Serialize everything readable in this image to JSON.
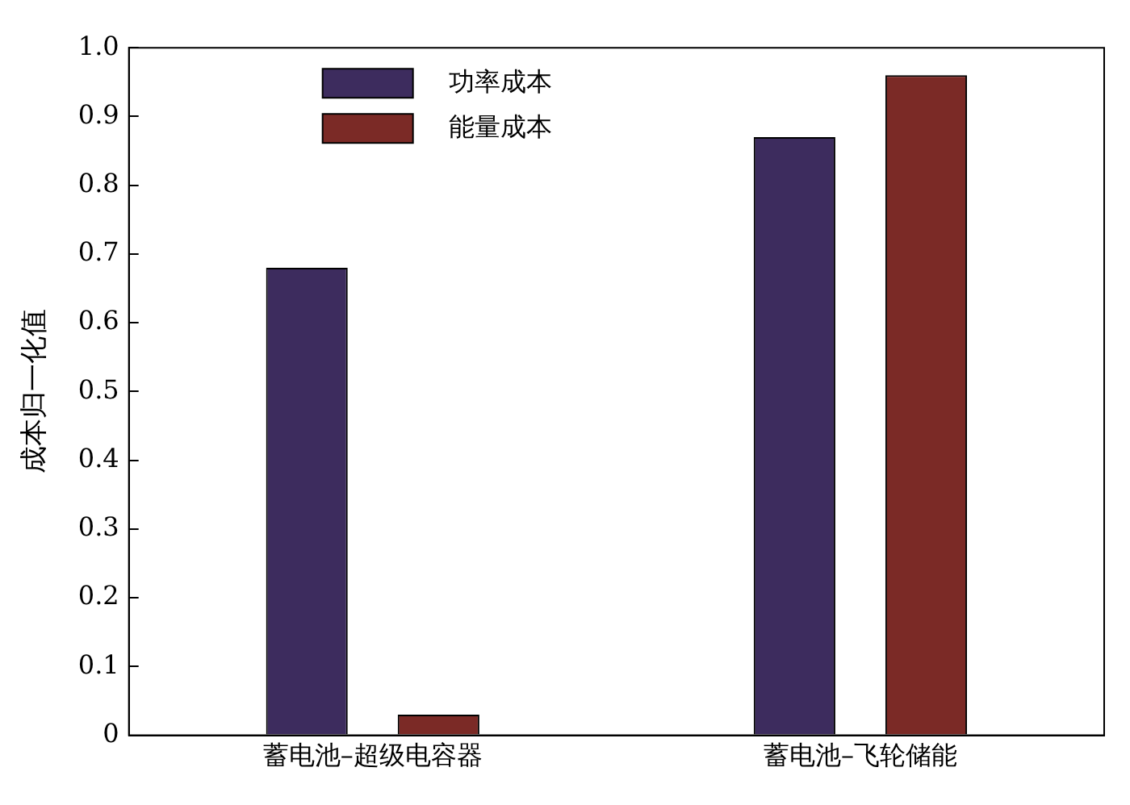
{
  "chart_data": {
    "type": "bar",
    "ylabel": "成本归一化值",
    "categories": [
      "蓄电池–超级电容器",
      "蓄电池–飞轮储能"
    ],
    "series": [
      {
        "name": "功率成本",
        "color": "#3d2c5e",
        "values": [
          0.68,
          0.87
        ]
      },
      {
        "name": "能量成本",
        "color": "#7b2a26",
        "values": [
          0.03,
          0.96
        ]
      }
    ],
    "ylim": [
      0,
      1
    ],
    "yticks": [
      0,
      0.1,
      0.2,
      0.3,
      0.4,
      0.5,
      0.6,
      0.7,
      0.8,
      0.9,
      {
        "value": 1,
        "label": "1.0"
      }
    ],
    "grid": false,
    "legend": "top left"
  }
}
